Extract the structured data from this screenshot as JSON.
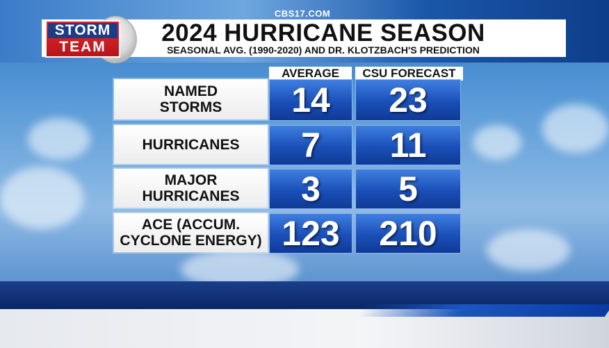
{
  "header": {
    "network": "CBS17.COM",
    "title": "2024 HURRICANE SEASON",
    "subtitle": "SEASONAL AVG. (1990-2020) AND DR. KLOTZBACH'S PREDICTION"
  },
  "logo": {
    "line1": "STORM",
    "line2": "TEAM"
  },
  "table": {
    "columns": [
      "AVERAGE",
      "CSU FORECAST"
    ],
    "rows": [
      {
        "label_line1": "NAMED",
        "label_line2": "STORMS",
        "average": "14",
        "forecast": "23"
      },
      {
        "label_line1": "HURRICANES",
        "label_line2": "",
        "average": "7",
        "forecast": "11"
      },
      {
        "label_line1": "MAJOR",
        "label_line2": "HURRICANES",
        "average": "3",
        "forecast": "5"
      },
      {
        "label_line1": "ACE (ACCUM.",
        "label_line2": "CYCLONE ENERGY)",
        "average": "123",
        "forecast": "210"
      }
    ]
  },
  "colors": {
    "cell_blue": "#1a4fb8",
    "logo_red": "#d01e25",
    "logo_navy": "#1a3d8a"
  }
}
